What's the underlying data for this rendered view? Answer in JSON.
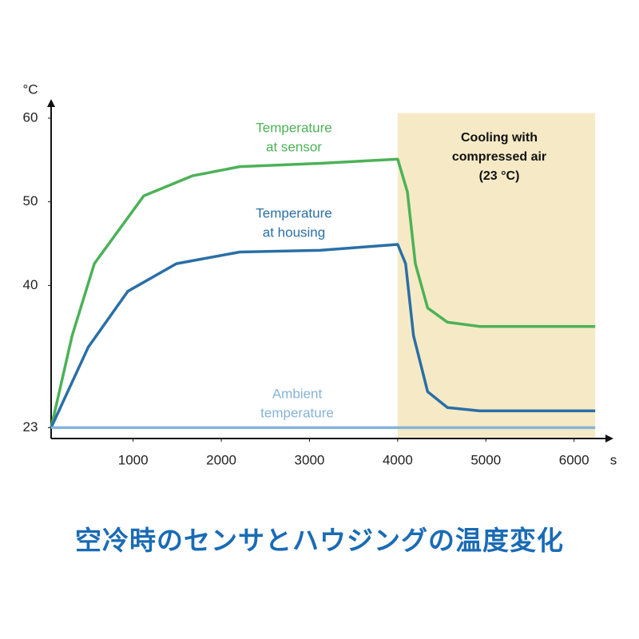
{
  "chart_data": {
    "type": "line",
    "y_unit": "°C",
    "x_unit": "s",
    "xlim": [
      70,
      6400
    ],
    "ylim": [
      21.7,
      61.9
    ],
    "xticks": [
      1000,
      2000,
      3000,
      4000,
      5000,
      6000
    ],
    "yticks": [
      23,
      40,
      50,
      60
    ],
    "shaded_region": {
      "xlim": [
        4000,
        6240
      ],
      "ylim": [
        21.7,
        60.6
      ],
      "color": "#f6eac6",
      "label": [
        "Cooling with",
        "compressed air",
        "(23 °C)"
      ]
    },
    "series": [
      {
        "name": [
          "Temperature",
          "at sensor"
        ],
        "color": "#4cb257",
        "x": [
          70,
          308,
          560,
          1120,
          1670,
          2210,
          3120,
          4000,
          4110,
          4200,
          4340,
          4565,
          4930,
          6240
        ],
        "values": [
          23,
          34,
          42.6,
          50.7,
          53.1,
          54.2,
          54.6,
          55.1,
          51.2,
          42.6,
          37.3,
          35.6,
          35.1,
          35.1
        ]
      },
      {
        "name": [
          "Temperature",
          "at housing"
        ],
        "color": "#2a6fa6",
        "x": [
          70,
          490,
          940,
          1490,
          2210,
          3120,
          4000,
          4090,
          4180,
          4340,
          4565,
          4930,
          6240
        ],
        "values": [
          23,
          32.6,
          39.3,
          42.6,
          44.0,
          44.2,
          44.9,
          42.6,
          34.0,
          27.3,
          25.4,
          25.0,
          25.0
        ]
      },
      {
        "name": [
          "Ambient",
          "temperature"
        ],
        "color": "#86b3d8",
        "x": [
          70,
          6240
        ],
        "values": [
          23,
          23
        ]
      }
    ],
    "caption": "空冷時のセンサとハウジングの温度変化"
  }
}
